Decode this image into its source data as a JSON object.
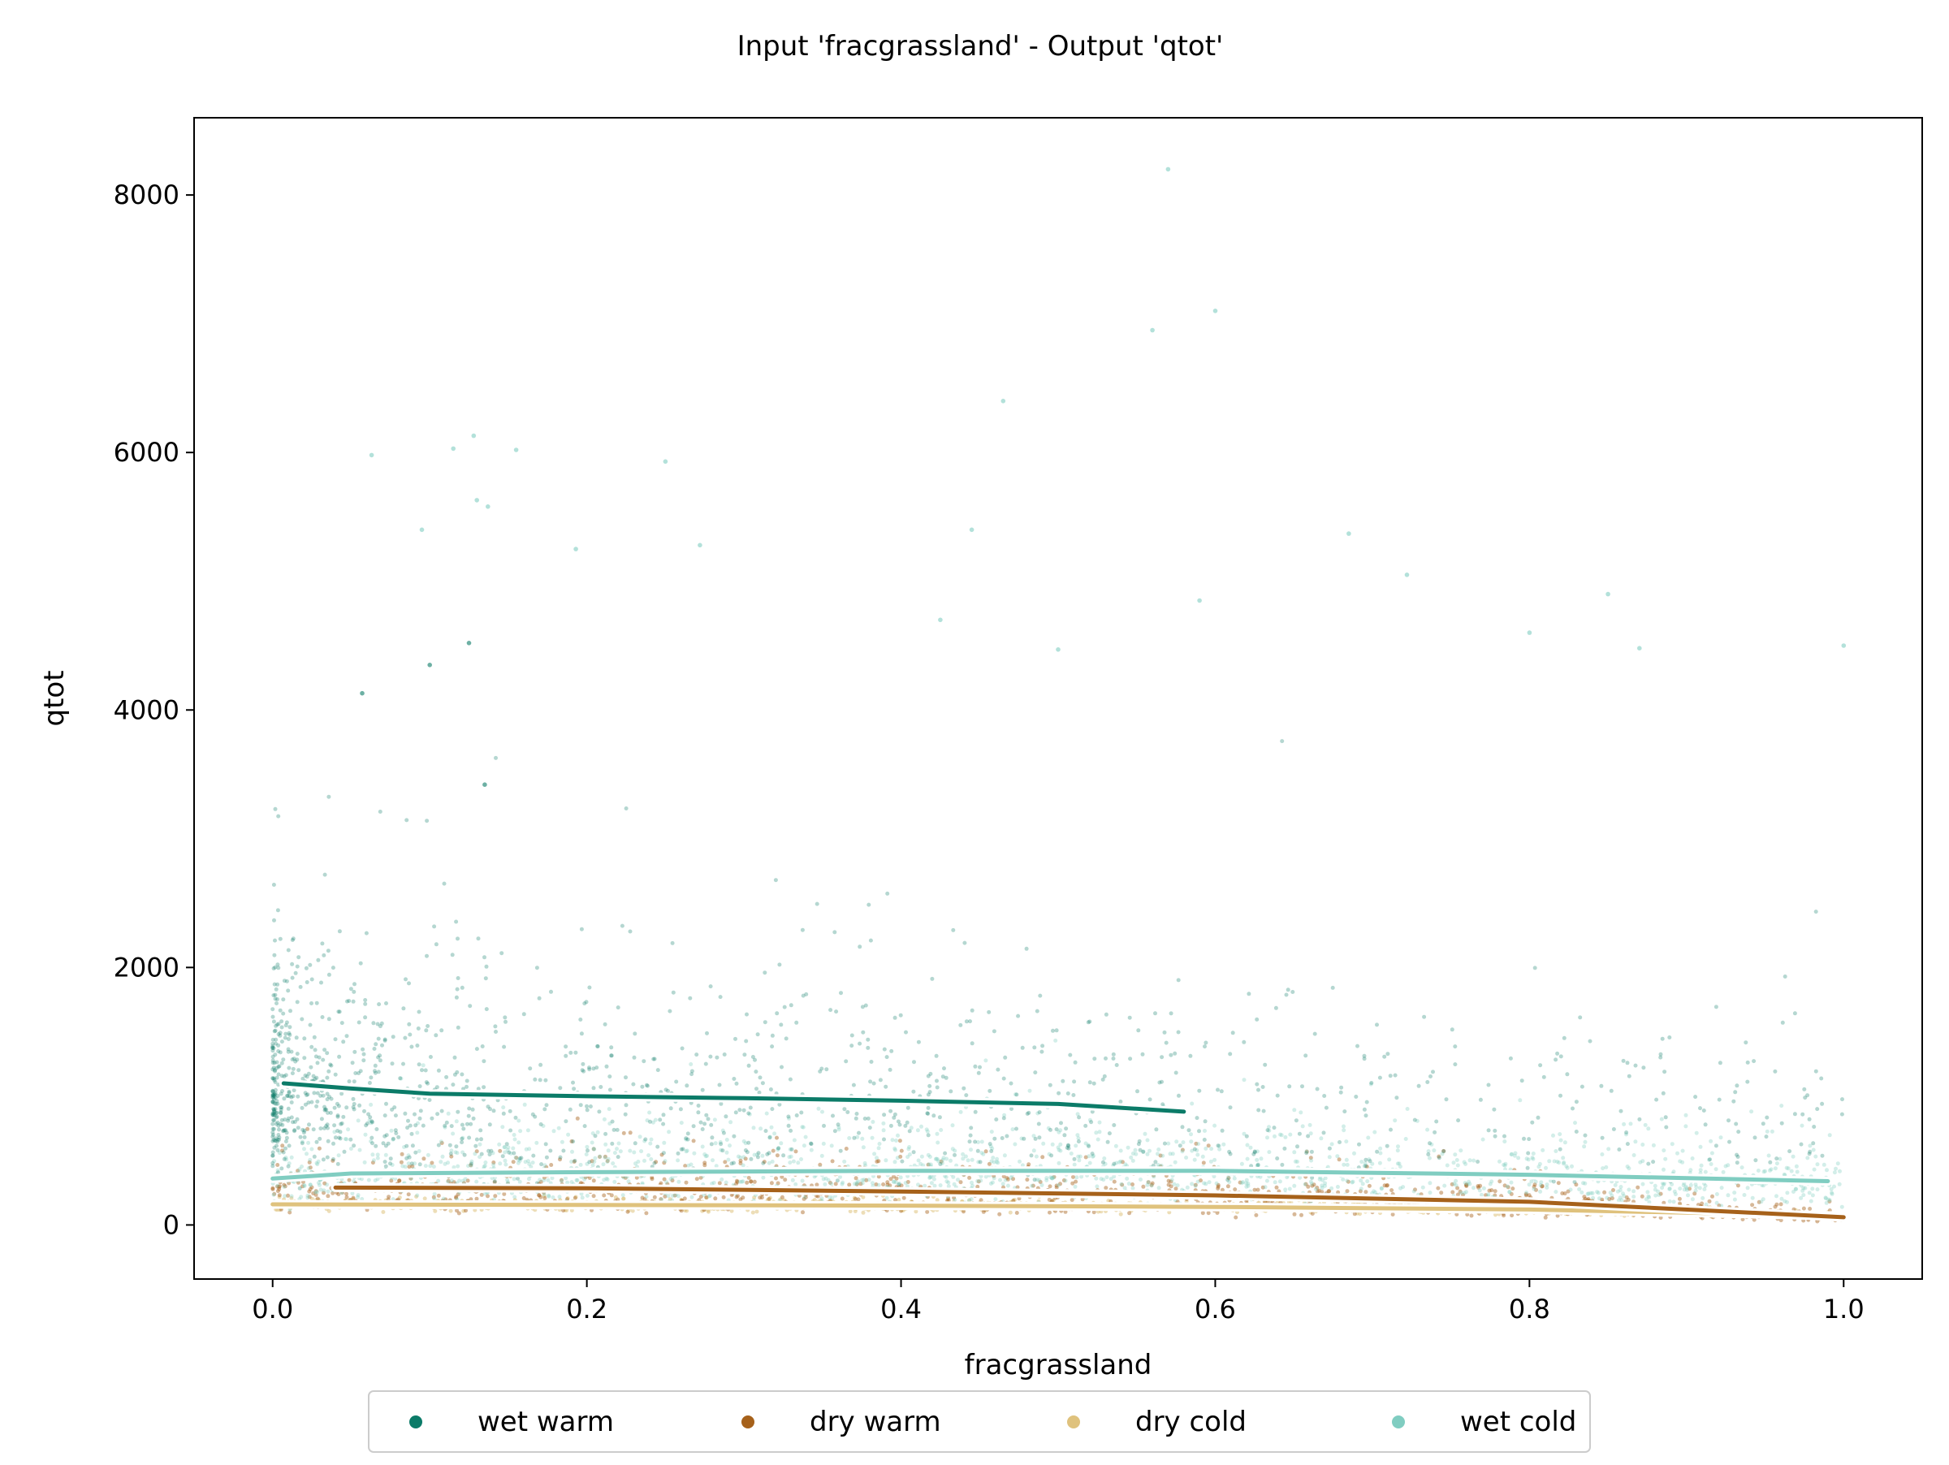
{
  "chart_data": {
    "type": "scatter",
    "title": "Input 'fracgrassland' - Output 'qtot'",
    "xlabel": "fracgrassland",
    "ylabel": "qtot",
    "xlim": [
      -0.05,
      1.05
    ],
    "ylim": [
      -420,
      8600
    ],
    "xticks": [
      0.0,
      0.2,
      0.4,
      0.6,
      0.8,
      1.0
    ],
    "xtick_labels": [
      "0.0",
      "0.2",
      "0.4",
      "0.6",
      "0.8",
      "1.0"
    ],
    "yticks": [
      0,
      2000,
      4000,
      6000,
      8000
    ],
    "ytick_labels": [
      "0",
      "2000",
      "4000",
      "6000",
      "8000"
    ],
    "grid": false,
    "legend": {
      "placement": "bottom-center-outside",
      "ncol": 4
    },
    "series": [
      {
        "name": "wet warm",
        "color": "#0b7b68",
        "trend": {
          "x": [
            0.007,
            0.05,
            0.1,
            0.2,
            0.3,
            0.4,
            0.5,
            0.58
          ],
          "y": [
            1100,
            1060,
            1020,
            1000,
            985,
            965,
            940,
            880
          ]
        },
        "outliers": [
          [
            0.057,
            4130
          ],
          [
            0.1,
            4350
          ],
          [
            0.125,
            4520
          ],
          [
            0.135,
            3420
          ]
        ]
      },
      {
        "name": "dry warm",
        "color": "#a6611a",
        "trend": {
          "x": [
            0.04,
            0.2,
            0.4,
            0.6,
            0.8,
            1.0
          ],
          "y": [
            290,
            285,
            260,
            230,
            180,
            60
          ]
        },
        "outliers": []
      },
      {
        "name": "dry cold",
        "color": "#dfc27d",
        "trend": {
          "x": [
            0.0,
            0.2,
            0.4,
            0.6,
            0.8,
            1.0
          ],
          "y": [
            160,
            155,
            150,
            140,
            120,
            70
          ]
        },
        "outliers": []
      },
      {
        "name": "wet cold",
        "color": "#80cdc1",
        "trend": {
          "x": [
            0.0,
            0.05,
            0.2,
            0.4,
            0.6,
            0.8,
            0.99
          ],
          "y": [
            360,
            400,
            410,
            420,
            420,
            390,
            340
          ]
        },
        "outliers": [
          [
            0.57,
            8200
          ],
          [
            0.6,
            7100
          ],
          [
            0.56,
            6950
          ],
          [
            0.465,
            6400
          ],
          [
            0.063,
            5980
          ],
          [
            0.128,
            6130
          ],
          [
            0.155,
            6020
          ],
          [
            0.115,
            6030
          ],
          [
            0.25,
            5930
          ],
          [
            0.13,
            5630
          ],
          [
            0.137,
            5580
          ],
          [
            0.095,
            5400
          ],
          [
            0.193,
            5250
          ],
          [
            0.272,
            5280
          ],
          [
            0.445,
            5400
          ],
          [
            0.685,
            5370
          ],
          [
            0.722,
            5050
          ],
          [
            0.59,
            4850
          ],
          [
            0.425,
            4700
          ],
          [
            0.8,
            4600
          ],
          [
            1.0,
            4500
          ],
          [
            0.87,
            4480
          ],
          [
            0.85,
            4900
          ],
          [
            0.5,
            4470
          ]
        ]
      }
    ]
  }
}
